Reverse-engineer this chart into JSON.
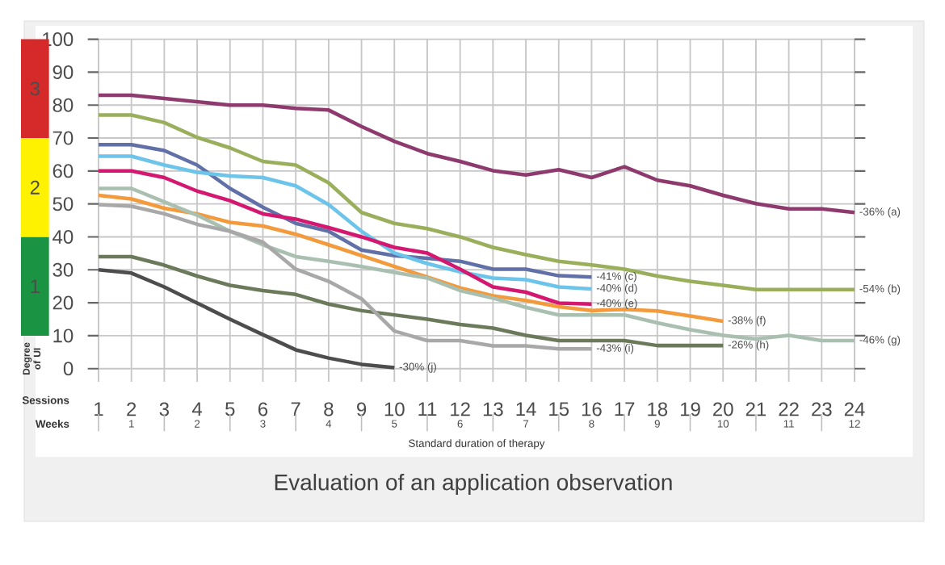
{
  "chart_data": {
    "type": "line",
    "title": "Evaluation of an application observation",
    "xlabel": "Sessions",
    "x2label": "Weeks",
    "ylabel": "Degree of UI",
    "x": [
      1,
      2,
      3,
      4,
      5,
      6,
      7,
      8,
      9,
      10,
      11,
      12,
      13,
      14,
      15,
      16,
      17,
      18,
      19,
      20,
      21,
      22,
      23,
      24
    ],
    "xlim": [
      1,
      24
    ],
    "xticks": [
      1,
      2,
      3,
      4,
      5,
      6,
      7,
      8,
      9,
      10,
      11,
      12,
      13,
      14,
      15,
      16,
      17,
      18,
      19,
      20,
      21,
      22,
      23,
      24
    ],
    "x2lim": [
      0.5,
      12
    ],
    "x2ticks": [
      {
        "value": 0.5,
        "label": null
      },
      1,
      {
        "value": 1.5,
        "label": null
      },
      2,
      {
        "value": 2.5,
        "label": null
      },
      3,
      {
        "value": 3.5,
        "label": null
      },
      4,
      {
        "value": 4.5,
        "label": null
      },
      5,
      {
        "value": 5.5,
        "label": null
      },
      6,
      {
        "value": 6.5,
        "label": null
      },
      7,
      {
        "value": 7.5,
        "label": null
      },
      8,
      {
        "value": 8.5,
        "label": null
      },
      9,
      {
        "value": 9.5,
        "label": null
      },
      10,
      {
        "value": 10.5,
        "label": null
      },
      11,
      {
        "value": 11.5,
        "label": null
      },
      12
    ],
    "ylim": [
      -4,
      100
    ],
    "yticks": [
      0,
      10,
      20,
      30,
      40,
      50,
      60,
      70,
      80,
      90,
      100
    ],
    "grid": true,
    "marker": "none",
    "line_style": "solid",
    "series": [
      {
        "color": "#8e3a6e",
        "values": [
          83,
          83,
          82,
          81,
          80,
          80,
          79,
          78.5,
          73.5,
          69,
          65.3,
          62.9,
          60.1,
          58.8,
          60.4,
          58,
          61.3,
          57.2,
          55.5,
          52.6,
          50.1,
          48.5,
          48.5,
          47.4
        ]
      },
      {
        "color": "#9aaf5c",
        "values": [
          77,
          77,
          74.7,
          70.2,
          67,
          62.9,
          61.8,
          56.4,
          47.4,
          44.1,
          42.5,
          40,
          36.8,
          34.6,
          32.6,
          31.5,
          30.2,
          28.1,
          26.5,
          25.3,
          24,
          24,
          24,
          24
        ]
      },
      {
        "color": "#6270a8",
        "values": [
          68,
          68,
          66.2,
          61.8,
          54.7,
          49,
          44.1,
          41.7,
          36,
          34.3,
          33.5,
          32.6,
          30.2,
          30.2,
          28.2,
          27.8,
          null,
          null,
          null,
          null,
          null,
          null,
          null,
          null
        ]
      },
      {
        "color": "#6cc4ea",
        "values": [
          64.5,
          64.5,
          61.8,
          59.6,
          58.5,
          58,
          55.5,
          49.8,
          41.7,
          35.1,
          31.9,
          29.4,
          27.5,
          27,
          24.8,
          24.2,
          null,
          null,
          null,
          null,
          null,
          null,
          null,
          null
        ]
      },
      {
        "color": "#d4176f",
        "values": [
          60,
          60,
          58,
          53.9,
          51,
          47,
          45.4,
          42.8,
          40,
          36.8,
          35.1,
          30.2,
          24.8,
          23.2,
          19.9,
          19.6,
          null,
          null,
          null,
          null,
          null,
          null,
          null,
          null
        ]
      },
      {
        "color": "#f39a3c",
        "values": [
          52.6,
          51.5,
          48.7,
          47,
          44.4,
          43.3,
          40.8,
          37.6,
          34.3,
          31,
          27.8,
          24.5,
          22.1,
          20.7,
          18.8,
          17.6,
          18,
          17.5,
          16,
          14.4,
          null,
          null,
          null,
          null
        ]
      },
      {
        "color": "#a9bfb0",
        "values": [
          54.7,
          54.7,
          50.6,
          46.6,
          41.7,
          37.6,
          34,
          32.6,
          31,
          29.2,
          27.5,
          23.7,
          21.4,
          18.6,
          16.3,
          16.3,
          16.3,
          13.9,
          11.8,
          10.1,
          9,
          10.1,
          8.5,
          8.5
        ]
      },
      {
        "color": "#6b7a5a",
        "values": [
          34,
          34,
          31.4,
          28.1,
          25.3,
          23.7,
          22.5,
          19.6,
          17.6,
          16.3,
          15,
          13.4,
          12.3,
          10.1,
          8.5,
          8.5,
          8.5,
          7,
          7,
          7,
          null,
          null,
          null,
          null
        ]
      },
      {
        "color": "#a8a8a8",
        "values": [
          49.8,
          49.3,
          47,
          43.8,
          41.7,
          38.4,
          30.2,
          26.5,
          21.2,
          11.4,
          8.5,
          8.5,
          6.9,
          6.9,
          6,
          6,
          null,
          null,
          null,
          null,
          null,
          null,
          null,
          null
        ]
      },
      {
        "color": "#4d4d4d",
        "values": [
          30,
          29,
          24.8,
          19.9,
          15,
          10.3,
          5.7,
          3.2,
          1.3,
          0.3,
          null,
          null,
          null,
          null,
          null,
          null,
          null,
          null,
          null,
          null,
          null,
          null,
          null,
          null
        ]
      }
    ],
    "annotations": [
      {
        "text": "-36% (a)",
        "x": 24,
        "y": 47.4
      },
      {
        "text": "-54% (b)",
        "x": 24,
        "y": 24
      },
      {
        "text": "-41% (c)",
        "x": 16,
        "y": 27.8
      },
      {
        "text": "-40% (d)",
        "x": 16,
        "y": 24.2
      },
      {
        "text": "-40% (e)",
        "x": 16,
        "y": 19.6
      },
      {
        "text": "-38% (f)",
        "x": 20,
        "y": 14.4
      },
      {
        "text": "-46% (g)",
        "x": 24,
        "y": 8.5
      },
      {
        "text": "-26% (h)",
        "x": 20,
        "y": 7
      },
      {
        "text": "-43% (i)",
        "x": 16,
        "y": 6
      },
      {
        "text": "-30% (j)",
        "x": 10,
        "y": 0.3
      },
      "Standard duration of therapy",
      "1",
      "2",
      "3"
    ]
  }
}
